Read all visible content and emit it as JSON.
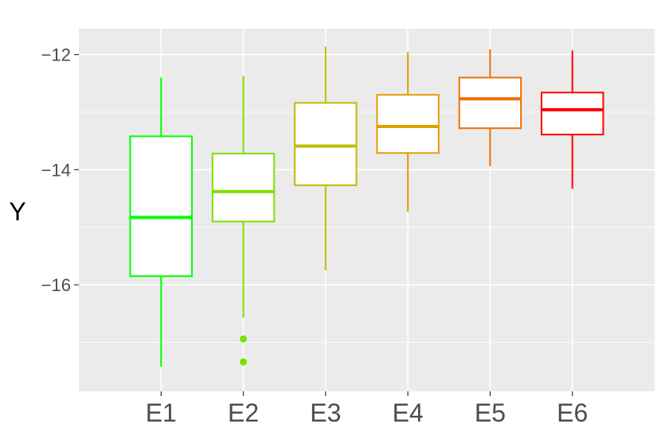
{
  "chart_data": {
    "type": "box",
    "title": "",
    "xlabel": "",
    "ylabel": "Y",
    "ylim": [
      -17.85,
      -11.55
    ],
    "yticks": [
      -16,
      -14,
      -12
    ],
    "yticklabels": [
      "−16",
      "−14",
      "−12"
    ],
    "grid": true,
    "legend": "none",
    "background": "#ebebeb",
    "categories": [
      "E1",
      "E2",
      "E3",
      "E4",
      "E5",
      "E6"
    ],
    "boxes": [
      {
        "name": "E1",
        "color": "#00ff00",
        "whisker_low": -17.42,
        "q1": -15.85,
        "median": -14.83,
        "q3": -13.42,
        "whisker_high": -12.4,
        "outliers": []
      },
      {
        "name": "E2",
        "color": "#7fe000",
        "whisker_low": -16.57,
        "q1": -14.9,
        "median": -14.38,
        "q3": -13.72,
        "whisker_high": -12.37,
        "outliers": [
          -16.94,
          -17.34
        ]
      },
      {
        "name": "E3",
        "color": "#bfbf00",
        "whisker_low": -15.75,
        "q1": -14.27,
        "median": -13.59,
        "q3": -12.84,
        "whisker_high": -11.86,
        "outliers": []
      },
      {
        "name": "E4",
        "color": "#e09f00",
        "whisker_low": -14.73,
        "q1": -13.71,
        "median": -13.25,
        "q3": -12.7,
        "whisker_high": -11.96,
        "outliers": []
      },
      {
        "name": "E5",
        "color": "#ef6f00",
        "whisker_low": -13.94,
        "q1": -13.28,
        "median": -12.77,
        "q3": -12.4,
        "whisker_high": -11.91,
        "outliers": []
      },
      {
        "name": "E6",
        "color": "#ff0000",
        "whisker_low": -14.33,
        "q1": -13.39,
        "median": -12.96,
        "q3": -12.66,
        "whisker_high": -11.93,
        "outliers": []
      }
    ]
  }
}
